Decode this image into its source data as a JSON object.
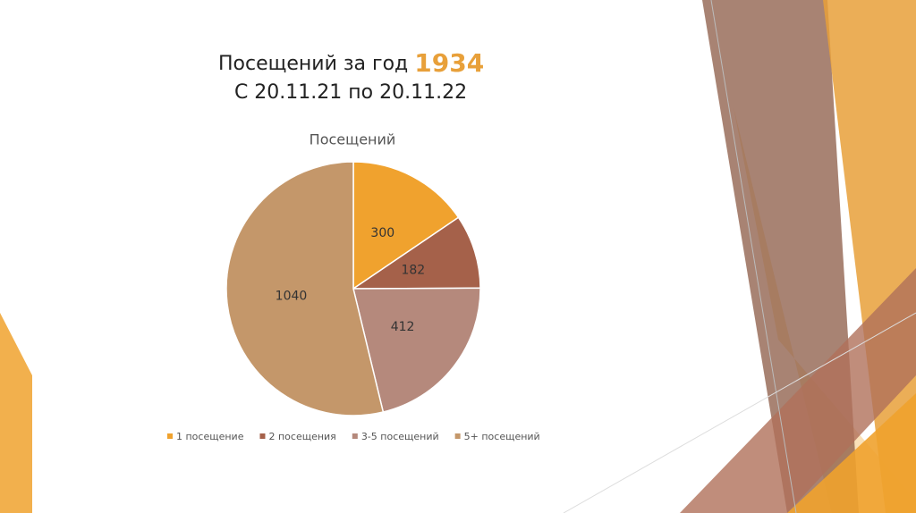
{
  "slide": {
    "title": "Посещений за год",
    "highlight": "1934",
    "subtitle": "С 20.11.21 по 20.11.22"
  },
  "chart_data": {
    "type": "pie",
    "title": "Посещений",
    "categories": [
      "1 посещение",
      "2 посещения",
      "3-5 посещений",
      "5+ посещений"
    ],
    "values": [
      300,
      182,
      412,
      1040
    ],
    "colors": [
      "#f0a22e",
      "#a5614a",
      "#b5897c",
      "#c4976a"
    ]
  }
}
